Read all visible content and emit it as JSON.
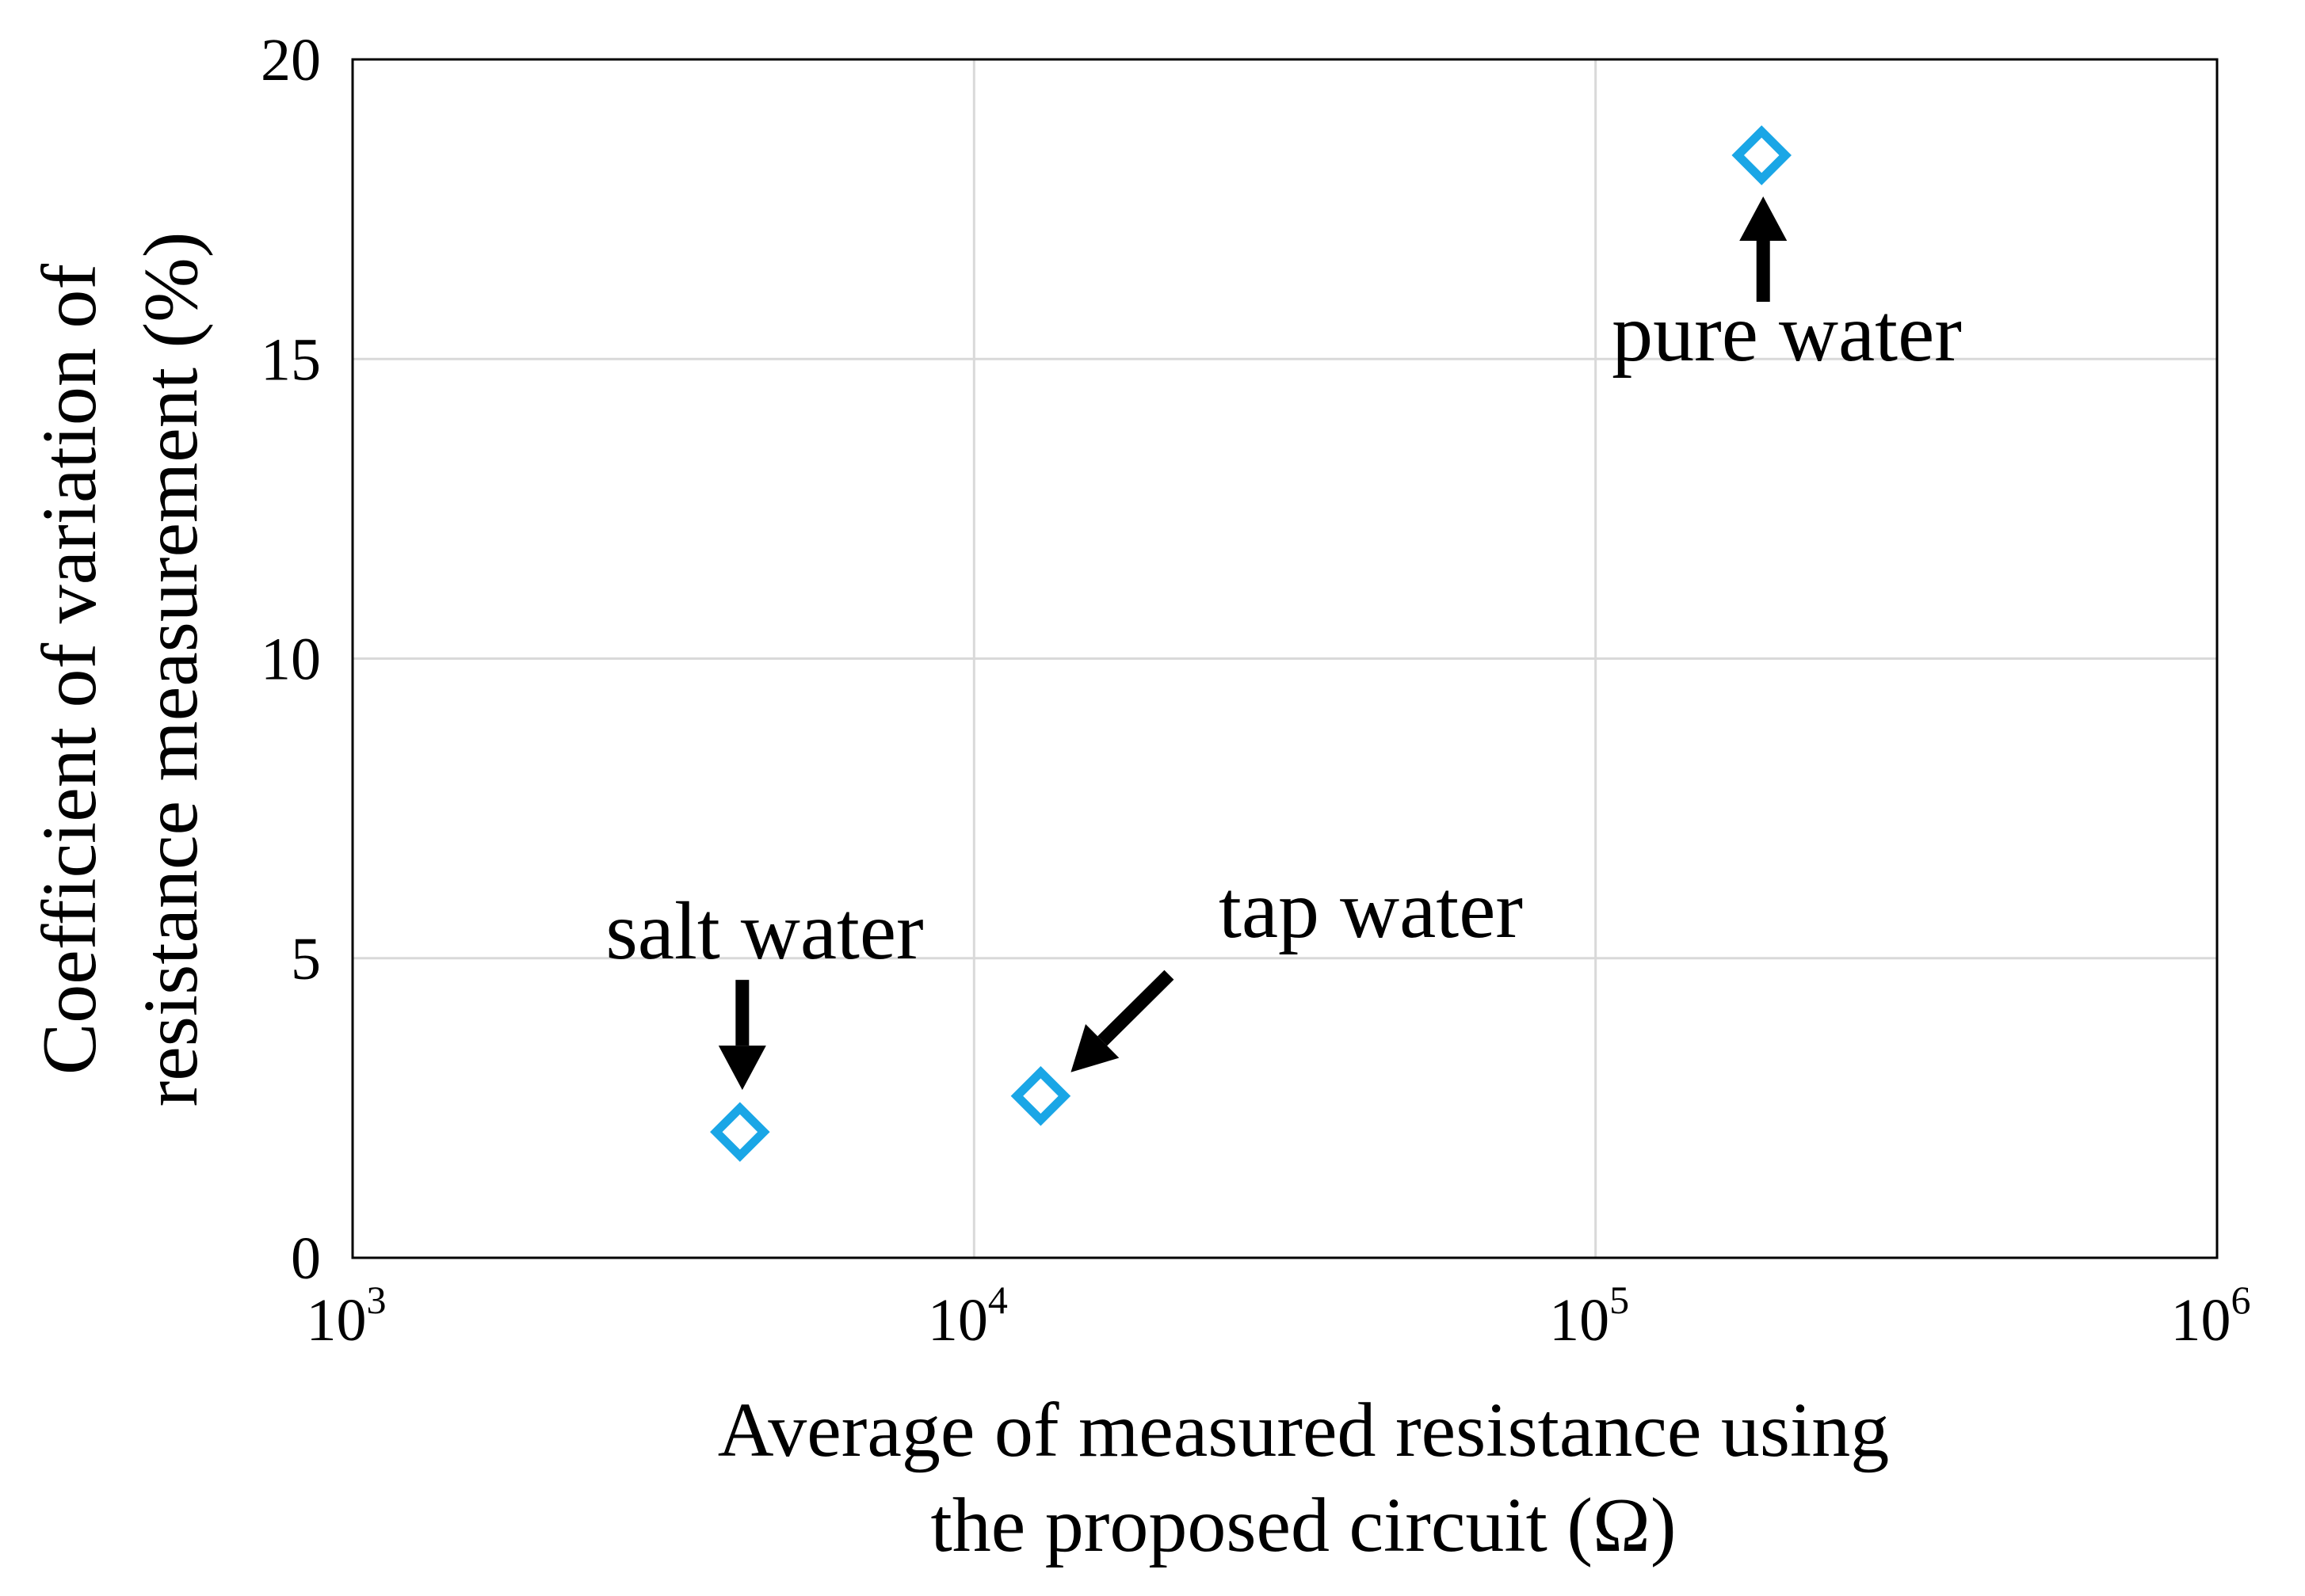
{
  "chart_data": {
    "type": "scatter",
    "title": "",
    "xlabel_lines": [
      "Average of measured resistance using",
      "the proposed circuit (Ω)"
    ],
    "ylabel_lines": [
      "Coefficient of variation of",
      "resistance measurement (%)"
    ],
    "xscale": "log",
    "xlim": [
      1000,
      1000000
    ],
    "ylim": [
      0,
      20
    ],
    "grid": true,
    "marker": "diamond",
    "marker_color": "#1aa6e6",
    "x_ticks": [
      {
        "base": "10",
        "exp": "3"
      },
      {
        "base": "10",
        "exp": "4"
      },
      {
        "base": "10",
        "exp": "5"
      },
      {
        "base": "10",
        "exp": "6"
      }
    ],
    "y_ticks": [
      "0",
      "5",
      "10",
      "15",
      "20"
    ],
    "points": [
      {
        "label": "salt water",
        "x": 4200,
        "y": 2.1
      },
      {
        "label": "tap water",
        "x": 12800,
        "y": 2.7
      },
      {
        "label": "pure water",
        "x": 185000,
        "y": 18.4
      }
    ],
    "annotations": [
      {
        "text": "salt water",
        "arrow": "down"
      },
      {
        "text": "tap water",
        "arrow": "down-left"
      },
      {
        "text": "pure water",
        "arrow": "up"
      }
    ]
  }
}
